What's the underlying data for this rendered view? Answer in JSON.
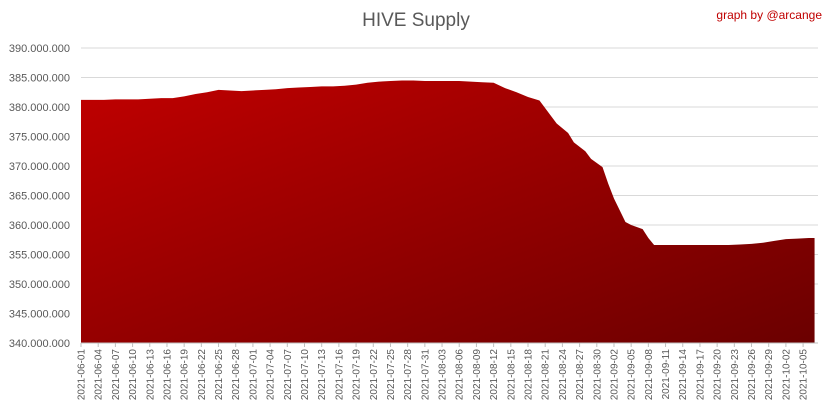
{
  "chart_data": {
    "type": "area",
    "title": "HIVE Supply",
    "credit": "graph by @arcange",
    "ylim": [
      340000000,
      390000000
    ],
    "y_ticks": [
      {
        "value": 340000000,
        "label": "340.000.000"
      },
      {
        "value": 345000000,
        "label": "345.000.000"
      },
      {
        "value": 350000000,
        "label": "350.000.000"
      },
      {
        "value": 355000000,
        "label": "355.000.000"
      },
      {
        "value": 360000000,
        "label": "360.000.000"
      },
      {
        "value": 365000000,
        "label": "365.000.000"
      },
      {
        "value": 370000000,
        "label": "370.000.000"
      },
      {
        "value": 375000000,
        "label": "375.000.000"
      },
      {
        "value": 380000000,
        "label": "380.000.000"
      },
      {
        "value": 385000000,
        "label": "385.000.000"
      },
      {
        "value": 390000000,
        "label": "390.000.000"
      }
    ],
    "x_tick_labels": [
      "2021-06-01",
      "2021-06-04",
      "2021-06-07",
      "2021-06-10",
      "2021-06-13",
      "2021-06-16",
      "2021-06-19",
      "2021-06-22",
      "2021-06-25",
      "2021-06-28",
      "2021-07-01",
      "2021-07-04",
      "2021-07-07",
      "2021-07-10",
      "2021-07-13",
      "2021-07-16",
      "2021-07-19",
      "2021-07-22",
      "2021-07-25",
      "2021-07-28",
      "2021-07-31",
      "2021-08-03",
      "2021-08-06",
      "2021-08-09",
      "2021-08-12",
      "2021-08-15",
      "2021-08-18",
      "2021-08-21",
      "2021-08-24",
      "2021-08-27",
      "2021-08-30",
      "2021-09-02",
      "2021-09-05",
      "2021-09-08",
      "2021-09-11",
      "2021-09-14",
      "2021-09-17",
      "2021-09-20",
      "2021-09-23",
      "2021-09-26",
      "2021-09-29",
      "2021-10-02",
      "2021-10-05"
    ],
    "x": [
      "2021-06-01",
      "2021-06-03",
      "2021-06-05",
      "2021-06-07",
      "2021-06-09",
      "2021-06-11",
      "2021-06-13",
      "2021-06-15",
      "2021-06-17",
      "2021-06-19",
      "2021-06-21",
      "2021-06-23",
      "2021-06-25",
      "2021-06-27",
      "2021-06-29",
      "2021-07-01",
      "2021-07-03",
      "2021-07-05",
      "2021-07-07",
      "2021-07-09",
      "2021-07-11",
      "2021-07-13",
      "2021-07-15",
      "2021-07-17",
      "2021-07-19",
      "2021-07-21",
      "2021-07-23",
      "2021-07-25",
      "2021-07-27",
      "2021-07-29",
      "2021-07-31",
      "2021-08-02",
      "2021-08-04",
      "2021-08-06",
      "2021-08-08",
      "2021-08-10",
      "2021-08-12",
      "2021-08-14",
      "2021-08-16",
      "2021-08-18",
      "2021-08-20",
      "2021-08-22",
      "2021-08-23",
      "2021-08-25",
      "2021-08-26",
      "2021-08-28",
      "2021-08-29",
      "2021-08-31",
      "2021-09-01",
      "2021-09-02",
      "2021-09-04",
      "2021-09-05",
      "2021-09-07",
      "2021-09-08",
      "2021-09-09",
      "2021-09-10",
      "2021-09-12",
      "2021-09-14",
      "2021-09-16",
      "2021-09-18",
      "2021-09-20",
      "2021-09-22",
      "2021-09-24",
      "2021-09-26",
      "2021-09-28",
      "2021-09-30",
      "2021-10-02",
      "2021-10-04",
      "2021-10-06",
      "2021-10-07"
    ],
    "series": [
      {
        "values": [
          381200000,
          381200000,
          381200000,
          381300000,
          381300000,
          381300000,
          381400000,
          381500000,
          381500000,
          381800000,
          382200000,
          382500000,
          382900000,
          382800000,
          382700000,
          382800000,
          382900000,
          383000000,
          383200000,
          383300000,
          383400000,
          383500000,
          383500000,
          383600000,
          383800000,
          384100000,
          384300000,
          384400000,
          384500000,
          384500000,
          384400000,
          384400000,
          384400000,
          384400000,
          384300000,
          384200000,
          384100000,
          383200000,
          382500000,
          381700000,
          381100000,
          378500000,
          377200000,
          375600000,
          374000000,
          372500000,
          371200000,
          369800000,
          367000000,
          364500000,
          360500000,
          360000000,
          359300000,
          357800000,
          356600000,
          356600000,
          356600000,
          356600000,
          356600000,
          356600000,
          356600000,
          356600000,
          356700000,
          356800000,
          357000000,
          357300000,
          357600000,
          357700000,
          357800000,
          357800000
        ]
      }
    ],
    "colors": {
      "fill_top": "#c00000",
      "fill_bottom": "#6b0000",
      "title": "#595959",
      "credit": "#c00000",
      "grid": "#d9d9d9",
      "axis": "#bfbfbf"
    },
    "grid": true,
    "legend": "none"
  }
}
